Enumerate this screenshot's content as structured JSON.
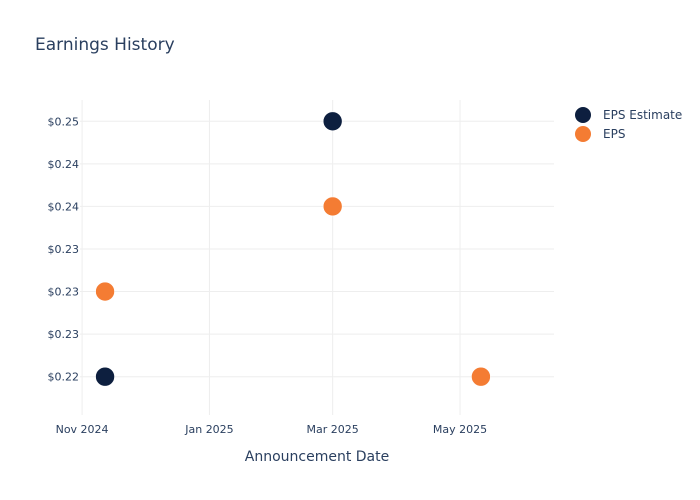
{
  "chart_data": {
    "type": "scatter",
    "title": "Earnings History",
    "xlabel": "Announcement Date",
    "ylabel": "",
    "x_axis": {
      "type": "date",
      "range": [
        "2024-10-31",
        "2025-06-15"
      ],
      "ticks": [
        {
          "date": "2024-11-01",
          "label": "Nov 2024"
        },
        {
          "date": "2025-01-01",
          "label": "Jan 2025"
        },
        {
          "date": "2025-03-01",
          "label": "Mar 2025"
        },
        {
          "date": "2025-05-01",
          "label": "May 2025"
        }
      ]
    },
    "y_axis": {
      "range": [
        0.2155,
        0.2525
      ],
      "ticks": [
        {
          "value": 0.22,
          "label": "$0.22"
        },
        {
          "value": 0.225,
          "label": "$0.23"
        },
        {
          "value": 0.23,
          "label": "$0.23"
        },
        {
          "value": 0.235,
          "label": "$0.23"
        },
        {
          "value": 0.24,
          "label": "$0.24"
        },
        {
          "value": 0.245,
          "label": "$0.24"
        },
        {
          "value": 0.25,
          "label": "$0.25"
        }
      ]
    },
    "grid": true,
    "legend_position": "top-right",
    "series": [
      {
        "name": "EPS Estimate",
        "color": "#0d1f3f",
        "points": [
          {
            "x": "2024-11-12",
            "y": 0.22
          },
          {
            "x": "2025-03-01",
            "y": 0.25
          },
          {
            "x": "2025-05-11",
            "y": 0.22
          }
        ]
      },
      {
        "name": "EPS",
        "color": "#f47c33",
        "points": [
          {
            "x": "2024-11-12",
            "y": 0.23
          },
          {
            "x": "2025-03-01",
            "y": 0.24
          },
          {
            "x": "2025-05-11",
            "y": 0.22
          }
        ]
      }
    ]
  }
}
